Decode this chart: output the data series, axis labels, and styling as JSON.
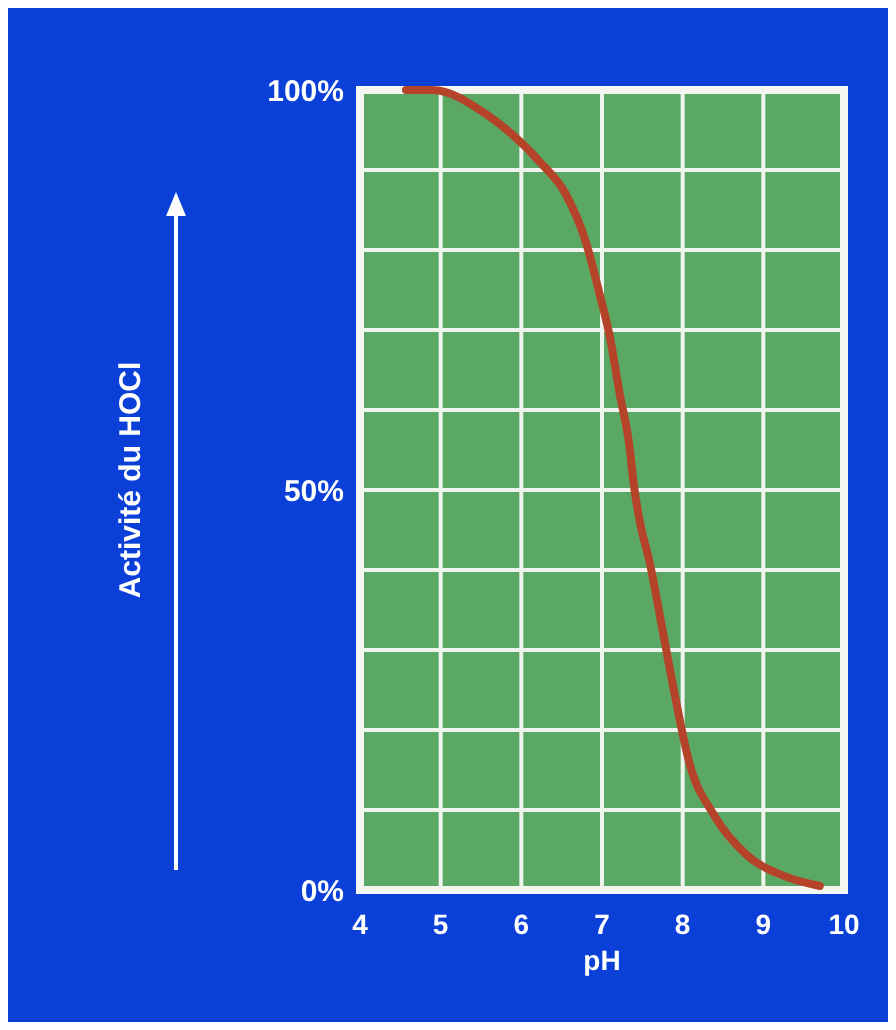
{
  "chart_data": {
    "type": "line",
    "xlabel": "pH",
    "ylabel": "Activité du HOCl",
    "xlim": [
      4,
      10
    ],
    "ylim": [
      0,
      100
    ],
    "xticks": [
      4,
      5,
      6,
      7,
      8,
      9,
      10
    ],
    "yticks": [
      {
        "value": 0,
        "label": "0%"
      },
      {
        "value": 10,
        "label": null
      },
      {
        "value": 20,
        "label": null
      },
      {
        "value": 30,
        "label": null
      },
      {
        "value": 40,
        "label": null
      },
      {
        "value": 50,
        "label": "50%"
      },
      {
        "value": 60,
        "label": null
      },
      {
        "value": 70,
        "label": null
      },
      {
        "value": 80,
        "label": null
      },
      {
        "value": 90,
        "label": null
      },
      {
        "value": 100,
        "label": "100%"
      }
    ],
    "grid": true,
    "marker": "none",
    "line_style": "solid",
    "series": [
      {
        "color": "#b5432a",
        "x": [
          4.57,
          4.9,
          5.56,
          6.23,
          6.55,
          6.8,
          6.97,
          7.1,
          7.22,
          7.34,
          7.39,
          7.47,
          7.59,
          7.76,
          7.91,
          8.08,
          8.38,
          8.78,
          9.27,
          9.7
        ],
        "values": [
          100,
          100,
          97,
          91,
          87,
          81,
          74.5,
          69,
          62,
          55.5,
          51,
          46,
          41,
          32,
          24,
          16,
          9.5,
          4.5,
          1.7,
          0.5
        ]
      }
    ]
  }
}
